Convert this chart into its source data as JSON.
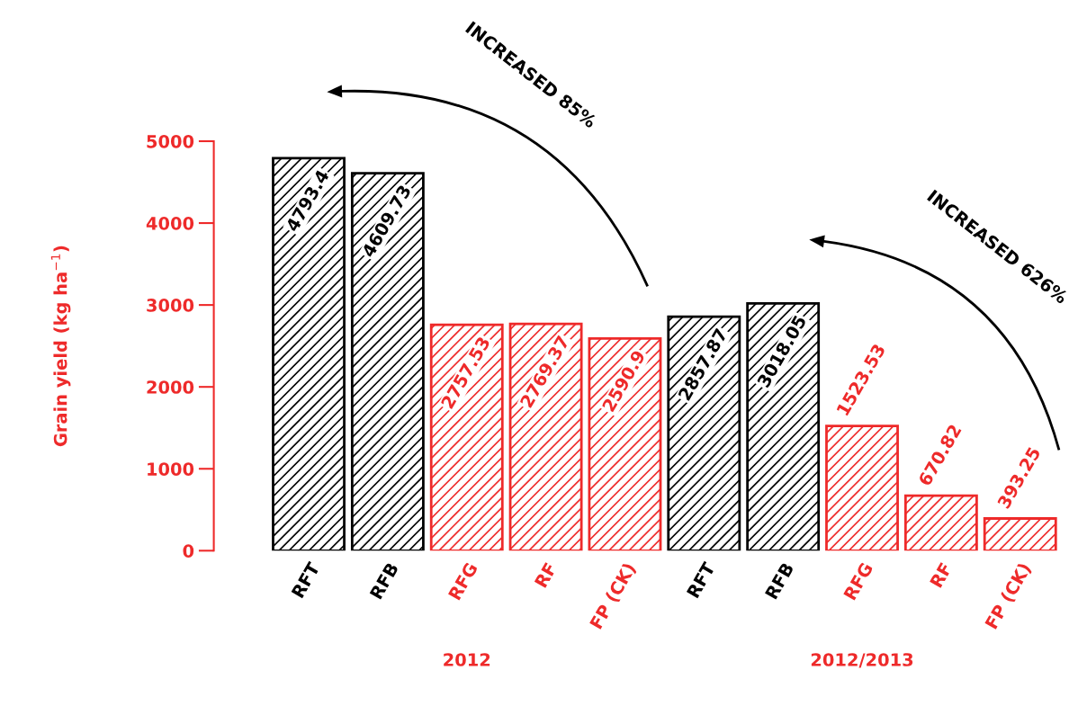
{
  "chart_data": {
    "type": "bar",
    "ylabel": "Grain yield (kg ha$^{−1}$)",
    "categories": [
      "RFT",
      "RFB",
      "RFG",
      "RF",
      "FP (CK)",
      "RFT",
      "RFB",
      "RFG",
      "RF",
      "FP (CK)"
    ],
    "values": [
      4793.4,
      4609.73,
      2757.53,
      2769.37,
      2590.9,
      2857.87,
      3018.05,
      1523.53,
      670.82,
      393.25
    ],
    "colors": [
      "#000000",
      "#000000",
      "#ee2a2a",
      "#ee2a2a",
      "#ee2a2a",
      "#000000",
      "#000000",
      "#ee2a2a",
      "#ee2a2a",
      "#ee2a2a"
    ],
    "ylim": [
      0,
      5000
    ],
    "yticks": [
      0,
      1000,
      2000,
      3000,
      4000,
      5000
    ],
    "data_labels": true,
    "grid": false,
    "annotations": [
      "INCREASED 85%",
      "INCREASED 626%",
      "2012",
      "2012/2013"
    ]
  }
}
